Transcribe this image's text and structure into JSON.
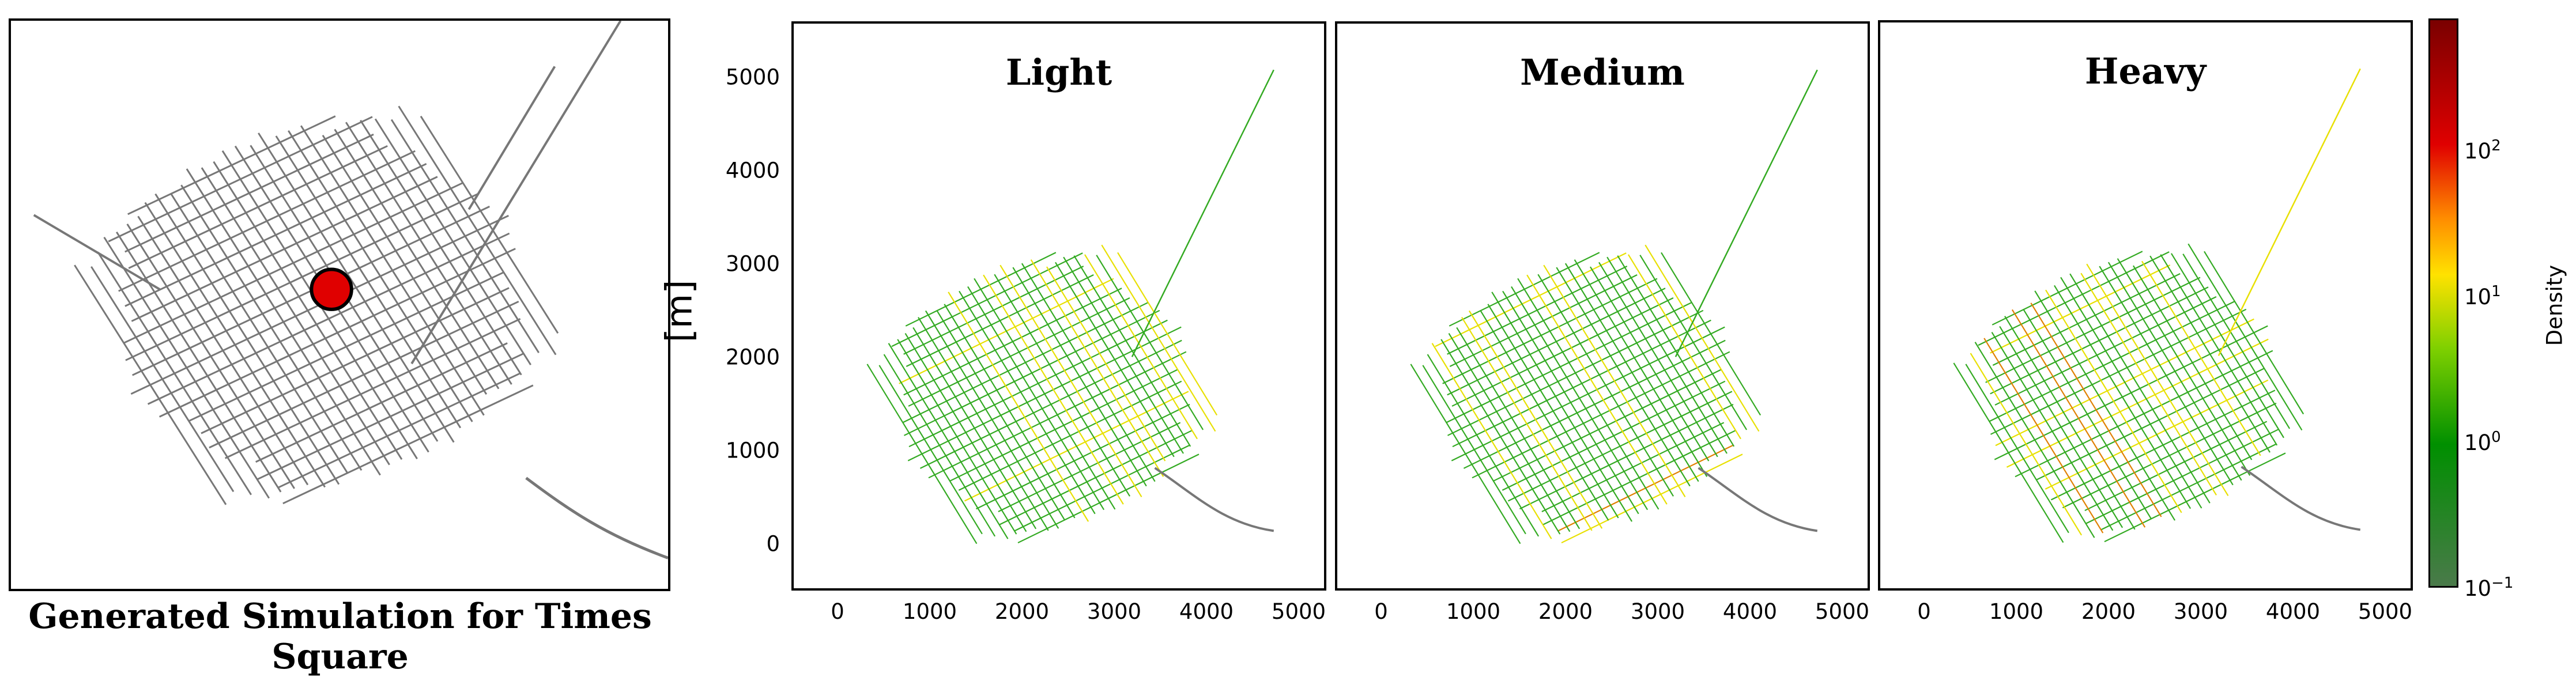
{
  "map_panel": {
    "caption": "Generated Simulation for Times Square",
    "marker_color": "#e00000",
    "marker_icon": "location-dot-icon"
  },
  "chart_data": [
    {
      "type": "heatmap",
      "title": "Light",
      "ylabel": "[m]",
      "xlim": [
        -500,
        5300
      ],
      "ylim": [
        -500,
        5600
      ],
      "x_ticks": [
        0,
        1000,
        2000,
        3000,
        4000,
        5000
      ],
      "y_ticks": [
        0,
        1000,
        2000,
        3000,
        4000,
        5000
      ],
      "colorbar": {
        "label": "Density",
        "scale": "log",
        "range": [
          0.1,
          800
        ],
        "tick_labels": [
          "10⁻¹",
          "10⁰",
          "10¹",
          "10²"
        ]
      },
      "hot_streets_max_density": 30
    },
    {
      "type": "heatmap",
      "title": "Medium",
      "xlim": [
        -500,
        5300
      ],
      "ylim": [
        -500,
        5600
      ],
      "x_ticks": [
        0,
        1000,
        2000,
        3000,
        4000,
        5000
      ],
      "hot_streets_max_density": 150
    },
    {
      "type": "heatmap",
      "title": "Heavy",
      "xlim": [
        -500,
        5300
      ],
      "ylim": [
        -500,
        5600
      ],
      "x_ticks": [
        0,
        1000,
        2000,
        3000,
        4000,
        5000
      ],
      "hot_streets_max_density": 400
    }
  ],
  "colorbar": {
    "label": "Density",
    "ticks": [
      {
        "base": "10",
        "exp": "−1",
        "value": 0.1
      },
      {
        "base": "10",
        "exp": "0",
        "value": 1
      },
      {
        "base": "10",
        "exp": "1",
        "value": 10
      },
      {
        "base": "10",
        "exp": "2",
        "value": 100
      }
    ]
  },
  "colors": {
    "street_gray": "#777777",
    "low": "#33aa22",
    "mid": "#e8e000",
    "high": "#e08000",
    "peak": "#c00000"
  }
}
